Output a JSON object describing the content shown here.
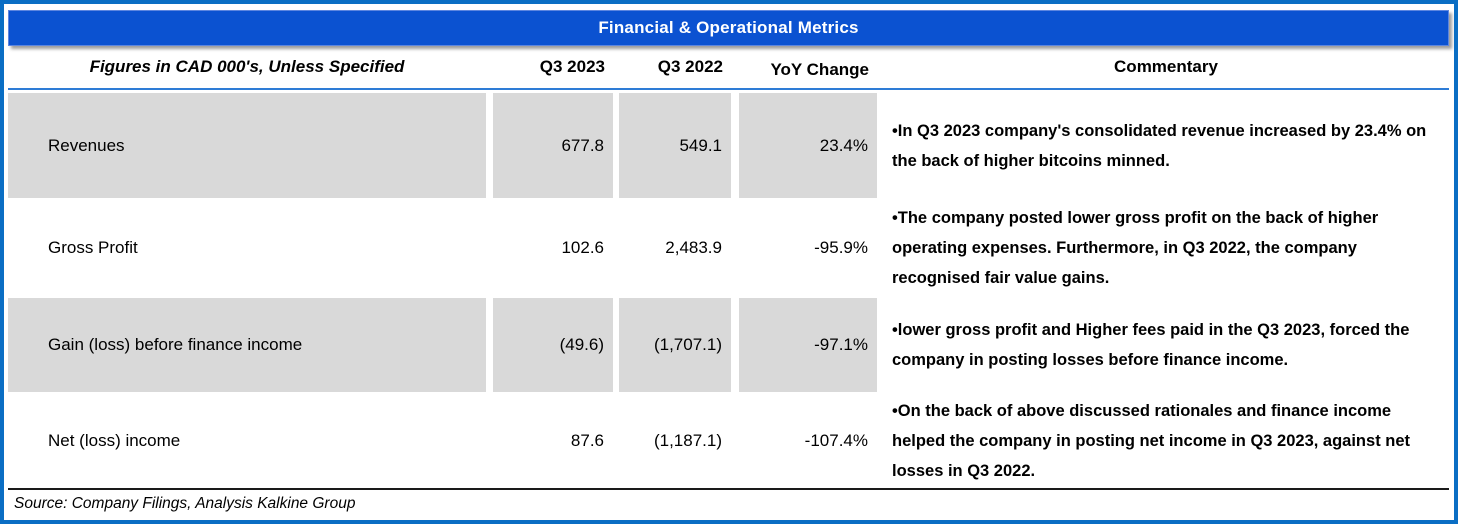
{
  "title": "Financial & Operational Metrics",
  "table": {
    "header": {
      "label": "Figures in CAD 000's, Unless Specified",
      "q3_2023": "Q3 2023",
      "q3_2022": "Q3 2022",
      "yoy": "YoY Change",
      "commentary": "Commentary"
    },
    "rows": [
      {
        "label": "Revenues",
        "q3_2023": "677.8",
        "q3_2022": "549.1",
        "yoy": "23.4%",
        "commentary": "•In Q3 2023 company's consolidated revenue increased by 23.4% on the back of higher bitcoins minned."
      },
      {
        "label": "Gross Profit",
        "q3_2023": "102.6",
        "q3_2022": "2,483.9",
        "yoy": "-95.9%",
        "commentary": "•The company posted lower gross profit on the back of higher operating expenses. Furthermore, in Q3 2022, the company recognised fair value gains."
      },
      {
        "label": "Gain (loss) before finance income",
        "q3_2023": "(49.6)",
        "q3_2022": "(1,707.1)",
        "yoy": "-97.1%",
        "commentary": "•lower gross profit and Higher fees paid in the Q3 2023, forced the company in posting losses before finance income."
      },
      {
        "label": "Net (loss) income",
        "q3_2023": "87.6",
        "q3_2022": "(1,187.1)",
        "yoy": "-107.4%",
        "commentary": "•On the back of above discussed rationales and finance income helped the company in posting net income in Q3 2023, against net losses in Q3 2022."
      }
    ]
  },
  "footer": "Source: Company Filings, Analysis Kalkine Group",
  "colors": {
    "banner_blue": "#0b52d1",
    "frame_blue": "#0a6ec4",
    "header_rule_blue": "#2e7cd6",
    "cell_gray": "#d9d9d9"
  }
}
